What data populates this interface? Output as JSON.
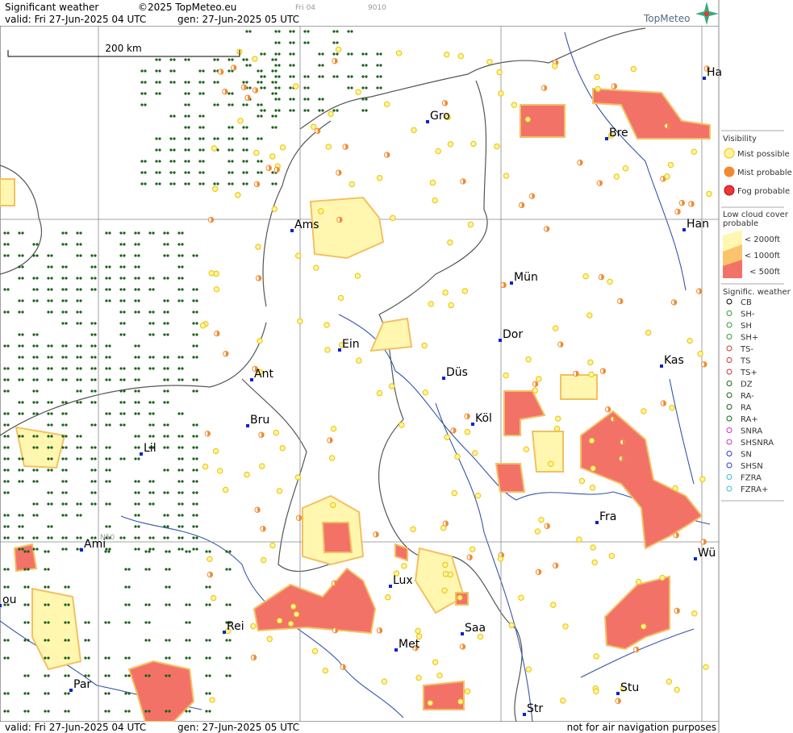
{
  "header": {
    "title": "Significant weather",
    "copyright": "©2025 TopMeteo.eu",
    "frame": "Fri 04",
    "code": "9010",
    "valid": "valid:  Fri  27-Jun-2025  04 UTC",
    "generated": "gen: 27-Jun-2025 05 UTC",
    "logo": "TopMeteo"
  },
  "map": {
    "scale": "200 km",
    "latitude_label": "N50",
    "cities": [
      "Ha",
      "Gro",
      "Bre",
      "Ams",
      "Han",
      "Mün",
      "Dor",
      "Ein",
      "Kas",
      "Düs",
      "Ant",
      "Köl",
      "Bru",
      "Lil",
      "Fra",
      "Ami",
      "Wü",
      "ou",
      "Lux",
      "Rei",
      "Saa",
      "Met",
      "Par",
      "Stu",
      "Str"
    ]
  },
  "legend": {
    "visibility": {
      "title": "Visibility",
      "items": [
        "Mist possible",
        "Mist probable",
        "Fog probable"
      ]
    },
    "low_cloud": {
      "title": [
        "Low cloud cover",
        "probable"
      ],
      "items": [
        "< 2000ft",
        "< 1000ft",
        "<   500ft"
      ]
    },
    "significant": {
      "title": "Signific. weather",
      "items": [
        "CB",
        "SH-",
        "SH",
        "SH+",
        "TS-",
        "TS",
        "TS+",
        "DZ",
        "RA-",
        "RA",
        "RA+",
        "SNRA",
        "SHSNRA",
        "SN",
        "SHSN",
        "FZRA",
        "FZRA+"
      ]
    }
  },
  "footer": {
    "valid": "valid:  Fri  27-Jun-2025  04 UTC",
    "generated": "gen: 27-Jun-2025 05 UTC",
    "disclaimer": "not for air navigation purposes"
  }
}
